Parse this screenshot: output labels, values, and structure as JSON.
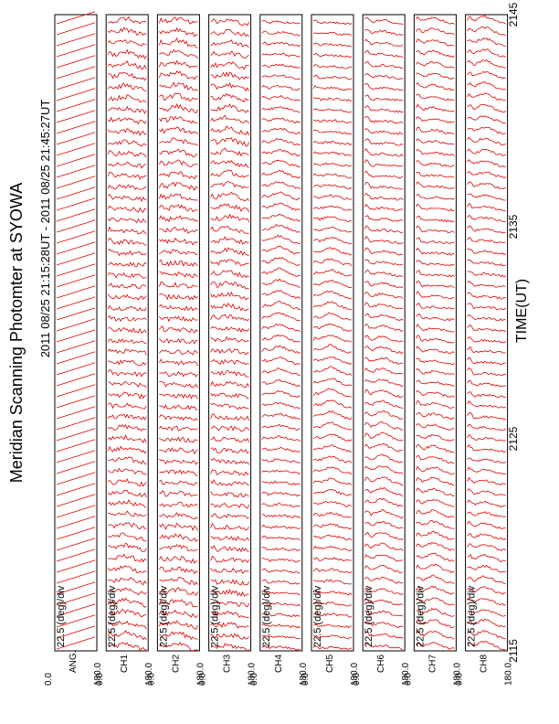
{
  "title": "Meridian Scanning Photomter at SYOWA",
  "subtitle": "2011 08/25 21:15:28UT - 2011 08/25 21:45:27UT",
  "xlabel": "TIME(UT)",
  "colors": {
    "trace": "#e00000",
    "frame": "#000000",
    "background": "#ffffff"
  },
  "chart_data": {
    "type": "line",
    "title": "Meridian Scanning Photomter at SYOWA",
    "subtitle": "2011 08/25 21:15:28UT - 2011 08/25 21:45:27UT",
    "xlabel": "TIME(UT)",
    "x_ticks": [
      "2115",
      "2125",
      "2135",
      "2145"
    ],
    "xlim": [
      "2115",
      "2145"
    ],
    "scale_label": "22.5 (deg)/div",
    "ylim": [
      0.0,
      180.0
    ],
    "y_ticks": [
      "0.0",
      "180.0"
    ],
    "grid": false,
    "panels": [
      {
        "name": "ANG",
        "label": "ANG.",
        "scale": "22.5 (deg)/div"
      },
      {
        "name": "CH1",
        "label": "CH1",
        "scale": "22.5 (deg)/div"
      },
      {
        "name": "CH2",
        "label": "CH2",
        "scale": "22.5 (deg)/div"
      },
      {
        "name": "CH3",
        "label": "CH3",
        "scale": "22.5 (deg)/div"
      },
      {
        "name": "CH4",
        "label": "CH4",
        "scale": "22.5 (deg)/div"
      },
      {
        "name": "CH5",
        "label": "CH5",
        "scale": "22.5 (deg)/div"
      },
      {
        "name": "CH6",
        "label": "CH6",
        "scale": "22.5 (deg)/div"
      },
      {
        "name": "CH7",
        "label": "CH7",
        "scale": "22.5 (deg)/div"
      },
      {
        "name": "CH8",
        "label": "CH8",
        "scale": "22.5 (deg)/div"
      }
    ],
    "scans_per_panel": 58
  }
}
